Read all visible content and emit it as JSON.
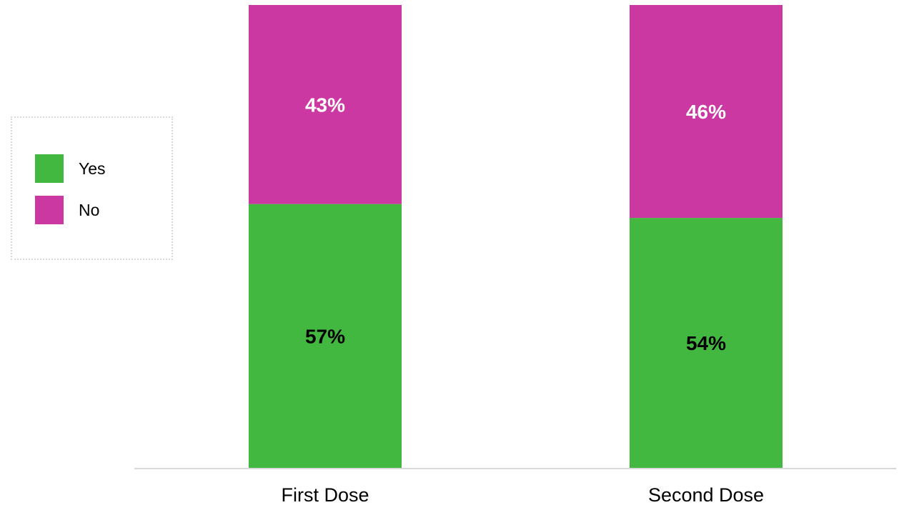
{
  "legend": {
    "placement": "left",
    "items": [
      {
        "label": "Yes",
        "color": "#43b840"
      },
      {
        "label": "No",
        "color": "#cc38a2"
      }
    ]
  },
  "chart_data": {
    "type": "bar",
    "stacked": true,
    "categories": [
      "First Dose",
      "Second Dose"
    ],
    "series": [
      {
        "name": "Yes",
        "values": [
          57,
          54
        ],
        "labels": [
          "57%",
          "54%"
        ],
        "color": "#43b840",
        "label_color": "#000000"
      },
      {
        "name": "No",
        "values": [
          43,
          46
        ],
        "labels": [
          "43%",
          "46%"
        ],
        "color": "#cc38a2",
        "label_color": "#ffffff"
      }
    ],
    "ylim": [
      0,
      100
    ],
    "grid": false,
    "legend_position": "left",
    "title": "",
    "xlabel": "",
    "ylabel": ""
  }
}
